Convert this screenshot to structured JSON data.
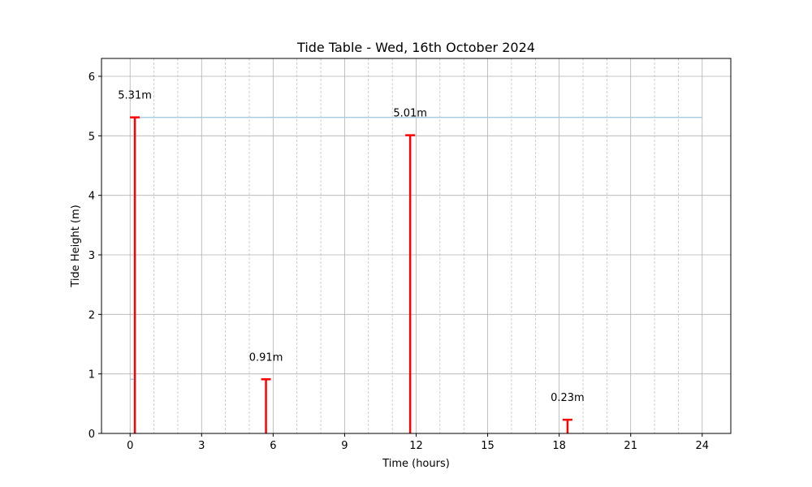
{
  "chart_data": {
    "type": "bar",
    "title": "Tide Table - Wed, 16th October 2024",
    "xlabel": "Time (hours)",
    "ylabel": "Tide Height (m)",
    "xlim": [
      -1.2,
      25.2
    ],
    "ylim": [
      0,
      6.3
    ],
    "xticks": [
      0,
      3,
      6,
      9,
      12,
      15,
      18,
      21,
      24
    ],
    "yticks": [
      0,
      1,
      2,
      3,
      4,
      5,
      6
    ],
    "x_minor_gridlines": [
      1,
      2,
      4,
      5,
      7,
      8,
      10,
      11,
      13,
      14,
      16,
      17,
      19,
      20,
      22,
      23
    ],
    "grid": true,
    "tides": [
      {
        "time": 0.2,
        "height": 5.31,
        "label": "5.31m"
      },
      {
        "time": 5.7,
        "height": 0.91,
        "label": "0.91m"
      },
      {
        "time": 11.75,
        "height": 5.01,
        "label": "5.01m"
      },
      {
        "time": 18.35,
        "height": 0.23,
        "label": "0.23m"
      }
    ],
    "reference_lines": [
      {
        "y": 5.31,
        "x_start": 0,
        "x_end": 24,
        "color": "#a6cee3"
      },
      {
        "y": 0.91,
        "x_start": 0,
        "x_end": 0.2,
        "color": "#a6cee3"
      }
    ],
    "colors": {
      "tide_bar": "#ff0000",
      "reference_line": "#a6cee3",
      "major_grid": "#b0b0b0",
      "minor_grid": "#b0b0b0"
    }
  }
}
